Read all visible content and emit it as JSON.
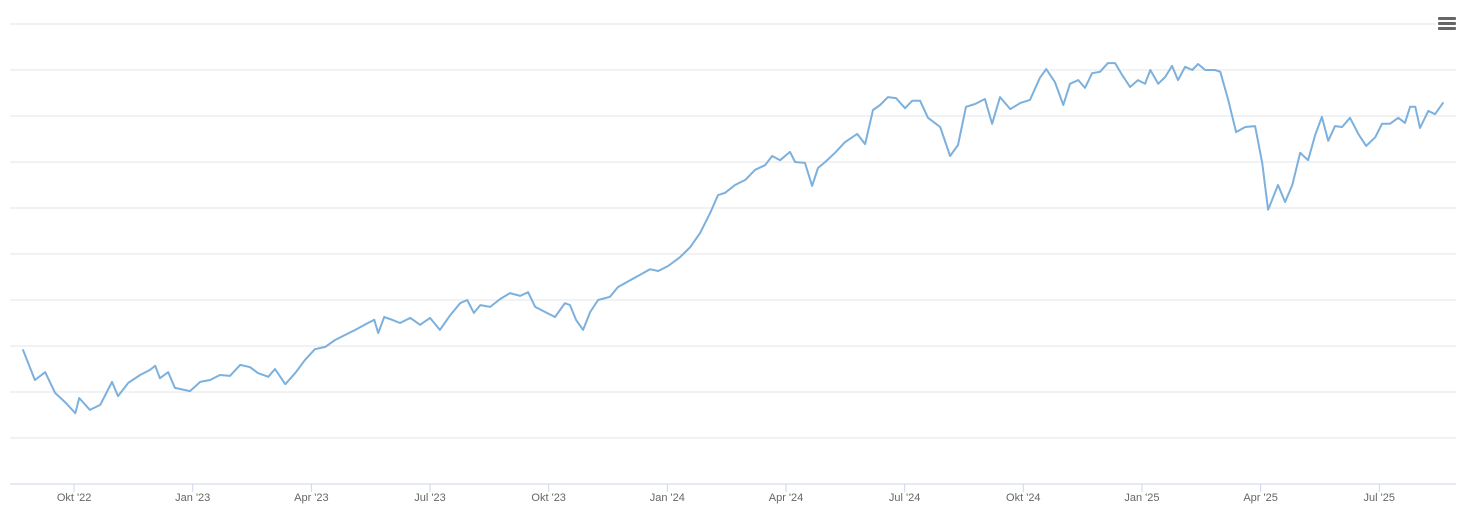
{
  "chart_data": {
    "type": "line",
    "x": [
      7.71,
      8.01,
      8.27,
      8.52,
      8.77,
      9.03,
      9.13,
      9.4,
      9.66,
      9.96,
      10.11,
      10.37,
      10.67,
      10.92,
      11.05,
      11.17,
      11.38,
      11.55,
      11.93,
      12.19,
      12.44,
      12.69,
      12.94,
      13.2,
      13.45,
      13.65,
      13.91,
      14.08,
      14.34,
      14.59,
      14.84,
      15.09,
      15.35,
      15.6,
      15.85,
      16.11,
      16.43,
      16.59,
      16.69,
      16.84,
      17.04,
      17.24,
      17.5,
      17.75,
      18.0,
      18.25,
      18.51,
      18.76,
      18.94,
      19.11,
      19.27,
      19.52,
      19.77,
      20.02,
      20.28,
      20.48,
      20.66,
      20.91,
      21.16,
      21.41,
      21.54,
      21.69,
      21.87,
      22.05,
      22.25,
      22.55,
      22.75,
      23.06,
      23.36,
      23.56,
      23.77,
      24.02,
      24.32,
      24.58,
      24.83,
      25.08,
      25.28,
      25.46,
      25.71,
      25.97,
      26.22,
      26.47,
      26.65,
      26.85,
      27.1,
      27.23,
      27.48,
      27.66,
      27.81,
      27.99,
      28.24,
      28.49,
      28.8,
      29.0,
      29.2,
      29.38,
      29.58,
      29.78,
      30.01,
      30.19,
      30.39,
      30.59,
      30.9,
      31.15,
      31.35,
      31.55,
      31.78,
      32.03,
      32.21,
      32.41,
      32.67,
      32.92,
      33.17,
      33.42,
      33.58,
      33.8,
      34.01,
      34.18,
      34.39,
      34.56,
      34.74,
      34.94,
      35.14,
      35.32,
      35.5,
      35.7,
      35.9,
      36.08,
      36.21,
      36.41,
      36.59,
      36.76,
      36.91,
      37.09,
      37.27,
      37.42,
      37.6,
      37.85,
      37.98,
      38.18,
      38.38,
      38.61,
      38.86,
      39.04,
      39.19,
      39.44,
      39.62,
      39.8,
      40.0,
      40.2,
      40.38,
      40.55,
      40.71,
      40.88,
      41.06,
      41.26,
      41.47,
      41.67,
      41.9,
      42.07,
      42.27,
      42.48,
      42.65,
      42.78,
      42.91,
      43.03,
      43.24,
      43.41,
      43.61
    ],
    "values": [
      2.91,
      2.26,
      2.43,
      1.98,
      1.78,
      1.54,
      1.87,
      1.61,
      1.72,
      2.22,
      1.91,
      2.2,
      2.37,
      2.48,
      2.57,
      2.3,
      2.43,
      2.09,
      2.02,
      2.22,
      2.26,
      2.37,
      2.35,
      2.59,
      2.54,
      2.41,
      2.33,
      2.5,
      2.17,
      2.41,
      2.7,
      2.93,
      2.98,
      3.13,
      3.24,
      3.35,
      3.5,
      3.57,
      3.28,
      3.63,
      3.57,
      3.5,
      3.61,
      3.46,
      3.61,
      3.35,
      3.67,
      3.93,
      4.0,
      3.72,
      3.89,
      3.85,
      4.02,
      4.15,
      4.09,
      4.17,
      3.85,
      3.74,
      3.63,
      3.93,
      3.89,
      3.57,
      3.35,
      3.74,
      4.0,
      4.07,
      4.28,
      4.43,
      4.57,
      4.67,
      4.63,
      4.74,
      4.93,
      5.15,
      5.46,
      5.89,
      6.28,
      6.33,
      6.5,
      6.61,
      6.83,
      6.93,
      7.13,
      7.04,
      7.22,
      7.0,
      6.98,
      6.48,
      6.87,
      7.0,
      7.2,
      7.43,
      7.61,
      7.39,
      8.13,
      8.24,
      8.41,
      8.39,
      8.17,
      8.33,
      8.33,
      7.96,
      7.76,
      7.13,
      7.37,
      8.2,
      8.26,
      8.37,
      7.83,
      8.41,
      8.15,
      8.28,
      8.35,
      8.83,
      9.02,
      8.74,
      8.24,
      8.7,
      8.78,
      8.61,
      8.93,
      8.96,
      9.15,
      9.15,
      8.89,
      8.63,
      8.78,
      8.7,
      9.0,
      8.7,
      8.85,
      9.09,
      8.78,
      9.07,
      9.0,
      9.13,
      9.0,
      9.0,
      8.96,
      8.35,
      7.65,
      7.76,
      7.78,
      6.98,
      5.96,
      6.5,
      6.13,
      6.5,
      7.2,
      7.04,
      7.59,
      7.98,
      7.46,
      7.78,
      7.76,
      7.96,
      7.61,
      7.35,
      7.54,
      7.83,
      7.83,
      7.96,
      7.85,
      8.2,
      8.2,
      7.74,
      8.11,
      8.04,
      8.28
    ],
    "color": "#7cb0dd",
    "xlim": [
      7.38,
      43.94
    ],
    "xticks": [
      {
        "value": 9,
        "label": "Okt '22"
      },
      {
        "value": 12,
        "label": "Jan '23"
      },
      {
        "value": 15,
        "label": "Apr '23"
      },
      {
        "value": 18,
        "label": "Jul '23"
      },
      {
        "value": 21,
        "label": "Okt '23"
      },
      {
        "value": 24,
        "label": "Jan '24"
      },
      {
        "value": 27,
        "label": "Apr '24"
      },
      {
        "value": 30,
        "label": "Jul '24"
      },
      {
        "value": 33,
        "label": "Okt '24"
      },
      {
        "value": 36,
        "label": "Jan '25"
      },
      {
        "value": 39,
        "label": "Apr '25"
      },
      {
        "value": 42,
        "label": "Jul '25"
      }
    ],
    "ylim": [
      0,
      10
    ],
    "yticks": [
      0,
      1,
      2,
      3,
      4,
      5,
      6,
      7,
      8,
      9,
      10
    ],
    "grid": true
  }
}
